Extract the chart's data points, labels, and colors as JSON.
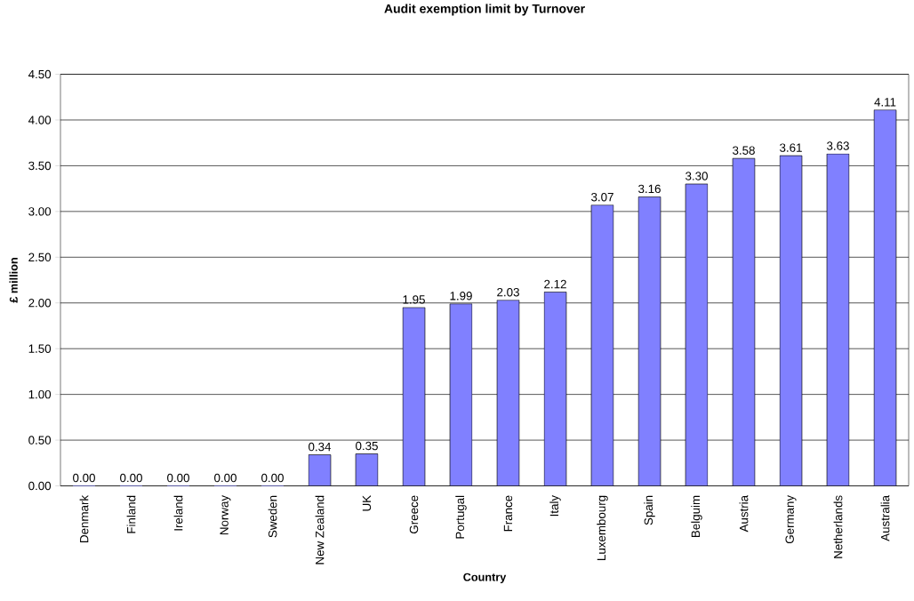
{
  "chart_data": {
    "type": "bar",
    "title": "Audit exemption limit by Turnover",
    "xlabel": "Country",
    "ylabel": "£ million",
    "categories": [
      "Denmark",
      "Finland",
      "Ireland",
      "Norway",
      "Sweden",
      "New Zealand",
      "UK",
      "Greece",
      "Portugal",
      "France",
      "Italy",
      "Luxembourg",
      "Spain",
      "Belguim",
      "Austria",
      "Germany",
      "Netherlands",
      "Australia"
    ],
    "values": [
      0,
      0,
      0,
      0,
      0,
      0.34,
      0.35,
      1.95,
      1.99,
      2.03,
      2.12,
      3.07,
      3.16,
      3.3,
      3.58,
      3.61,
      3.63,
      4.11
    ],
    "value_labels": [
      "0.00",
      "0.00",
      "0.00",
      "0.00",
      "0.00",
      "0.34",
      "0.35",
      "1.95",
      "1.99",
      "2.03",
      "2.12",
      "3.07",
      "3.16",
      "3.30",
      "3.58",
      "3.61",
      "3.63",
      "4.11"
    ],
    "color": "#8080ff",
    "ylim": [
      0,
      4.5
    ],
    "yticks": [
      {
        "value": 0,
        "label": "0.00"
      },
      {
        "value": 0.5,
        "label": "0.50"
      },
      {
        "value": 1,
        "label": "1.00"
      },
      {
        "value": 1.5,
        "label": "1.50"
      },
      {
        "value": 2,
        "label": "2.00"
      },
      {
        "value": 2.5,
        "label": "2.50"
      },
      {
        "value": 3,
        "label": "3.00"
      },
      {
        "value": 3.5,
        "label": "3.50"
      },
      {
        "value": 4,
        "label": "4.00"
      },
      {
        "value": 4.5,
        "label": "4.50"
      }
    ],
    "grid": "y"
  }
}
